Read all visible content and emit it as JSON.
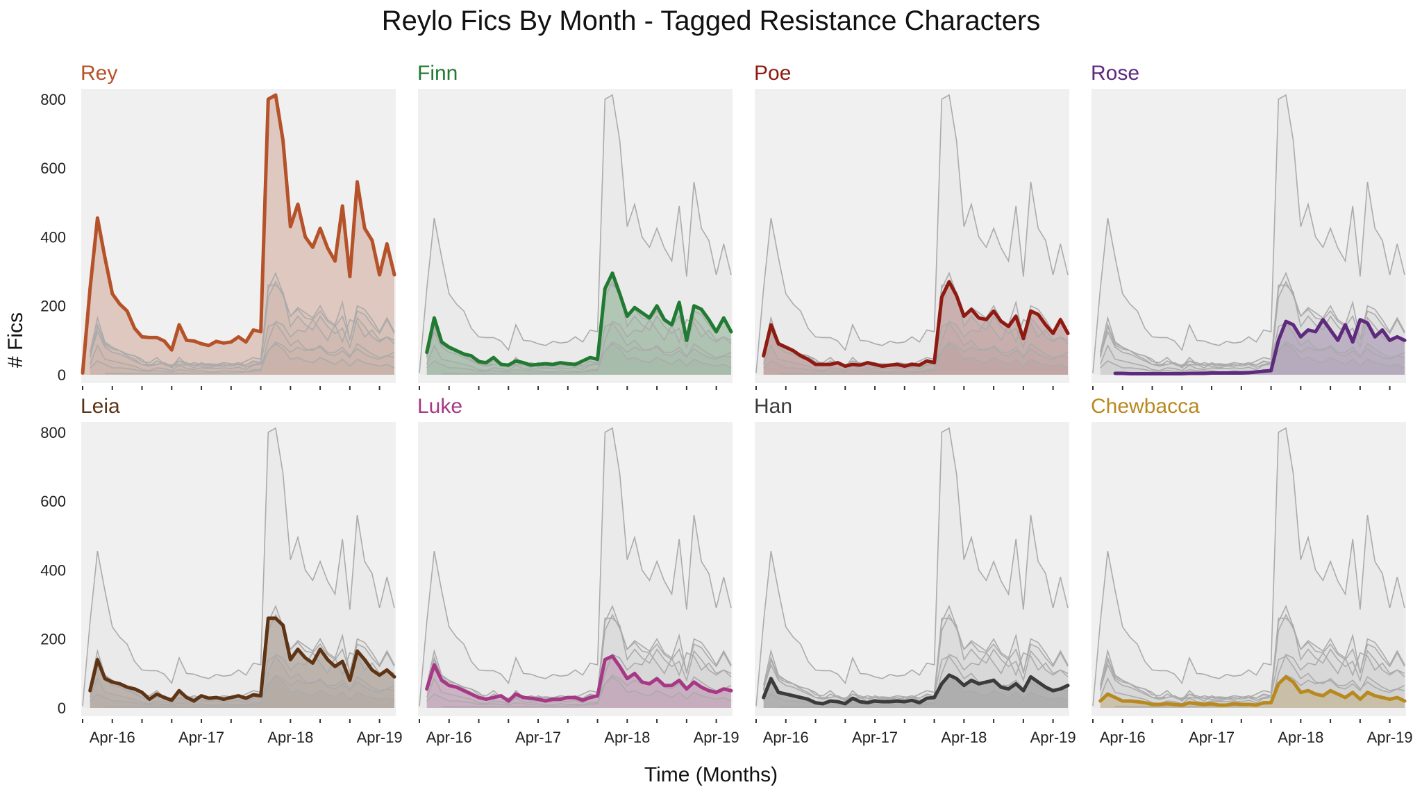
{
  "chart_data": {
    "type": "area",
    "title": "Reylo Fics By Month - Tagged Resistance Characters",
    "xlabel": "Time (Months)",
    "ylabel": "# Fics",
    "ylim": [
      0,
      830
    ],
    "yticks": [
      0,
      200,
      400,
      600,
      800
    ],
    "xtick_labels": [
      "Apr-16",
      "Apr-17",
      "Apr-18",
      "Apr-19"
    ],
    "xtick_months": [
      4,
      16,
      28,
      40
    ],
    "month_index_note_unused": null,
    "x": [
      "Dec-15",
      "Jan-16",
      "Feb-16",
      "Mar-16",
      "Apr-16",
      "May-16",
      "Jun-16",
      "Jul-16",
      "Aug-16",
      "Sep-16",
      "Oct-16",
      "Nov-16",
      "Dec-16",
      "Jan-17",
      "Feb-17",
      "Mar-17",
      "Apr-17",
      "May-17",
      "Jun-17",
      "Jul-17",
      "Aug-17",
      "Sep-17",
      "Oct-17",
      "Nov-17",
      "Dec-17",
      "Jan-18",
      "Feb-18",
      "Mar-18",
      "Apr-18",
      "May-18",
      "Jun-18",
      "Jul-18",
      "Aug-18",
      "Sep-18",
      "Oct-18",
      "Nov-18",
      "Dec-18",
      "Jan-19",
      "Feb-19",
      "Mar-19",
      "Apr-19",
      "May-19",
      "Jun-19"
    ],
    "series": [
      {
        "name": "Rey",
        "color": "#b5522a",
        "values": [
          5,
          250,
          455,
          340,
          235,
          205,
          185,
          135,
          110,
          108,
          108,
          98,
          72,
          145,
          100,
          98,
          90,
          85,
          97,
          92,
          95,
          110,
          95,
          130,
          125,
          800,
          812,
          680,
          430,
          495,
          400,
          370,
          425,
          368,
          330,
          490,
          285,
          560,
          425,
          390,
          290,
          380,
          290
        ]
      },
      {
        "name": "Finn",
        "color": "#217a32",
        "values": [
          null,
          65,
          165,
          95,
          80,
          70,
          60,
          55,
          38,
          35,
          50,
          30,
          28,
          40,
          35,
          28,
          30,
          32,
          30,
          35,
          32,
          30,
          40,
          50,
          45,
          250,
          295,
          235,
          170,
          195,
          180,
          165,
          200,
          160,
          145,
          210,
          100,
          200,
          190,
          160,
          125,
          165,
          125
        ]
      },
      {
        "name": "Poe",
        "color": "#8e1a12",
        "values": [
          null,
          55,
          145,
          90,
          80,
          70,
          55,
          45,
          30,
          30,
          30,
          35,
          25,
          30,
          28,
          35,
          30,
          25,
          28,
          30,
          25,
          30,
          28,
          40,
          35,
          225,
          270,
          230,
          170,
          190,
          165,
          160,
          185,
          155,
          140,
          170,
          105,
          185,
          175,
          145,
          120,
          160,
          120
        ]
      },
      {
        "name": "Rose",
        "color": "#5e2a7e",
        "values": [
          null,
          null,
          null,
          4,
          4,
          3,
          3,
          3,
          3,
          3,
          3,
          3,
          3,
          4,
          4,
          4,
          5,
          5,
          5,
          5,
          5,
          6,
          8,
          10,
          12,
          100,
          155,
          145,
          110,
          130,
          125,
          160,
          130,
          100,
          145,
          95,
          160,
          150,
          110,
          130,
          100,
          110,
          100
        ]
      },
      {
        "name": "Leia",
        "color": "#5e3415",
        "values": [
          null,
          50,
          140,
          85,
          75,
          70,
          60,
          55,
          45,
          25,
          40,
          30,
          22,
          50,
          30,
          20,
          35,
          28,
          30,
          25,
          30,
          35,
          28,
          38,
          35,
          260,
          260,
          240,
          140,
          170,
          145,
          130,
          170,
          140,
          120,
          135,
          80,
          165,
          140,
          110,
          95,
          110,
          90
        ]
      },
      {
        "name": "Luke",
        "color": "#a63886",
        "values": [
          null,
          55,
          125,
          80,
          65,
          60,
          50,
          40,
          30,
          25,
          30,
          35,
          20,
          40,
          30,
          28,
          25,
          20,
          25,
          25,
          30,
          30,
          22,
          30,
          35,
          140,
          150,
          120,
          85,
          100,
          75,
          70,
          85,
          65,
          65,
          80,
          55,
          75,
          60,
          50,
          45,
          55,
          50
        ]
      },
      {
        "name": "Han",
        "color": "#3b3b3b",
        "values": [
          null,
          30,
          85,
          45,
          40,
          35,
          30,
          25,
          15,
          12,
          20,
          18,
          12,
          28,
          18,
          15,
          20,
          18,
          18,
          20,
          18,
          22,
          15,
          28,
          30,
          70,
          95,
          85,
          65,
          80,
          70,
          75,
          80,
          60,
          55,
          70,
          50,
          90,
          75,
          60,
          50,
          55,
          65
        ]
      },
      {
        "name": "Chewbacca",
        "color": "#b8891f",
        "values": [
          null,
          20,
          40,
          30,
          20,
          20,
          18,
          15,
          10,
          10,
          12,
          10,
          8,
          15,
          12,
          10,
          12,
          8,
          8,
          12,
          10,
          10,
          8,
          15,
          15,
          70,
          90,
          75,
          45,
          50,
          40,
          35,
          50,
          40,
          30,
          45,
          25,
          45,
          35,
          30,
          25,
          30,
          20
        ]
      }
    ]
  }
}
